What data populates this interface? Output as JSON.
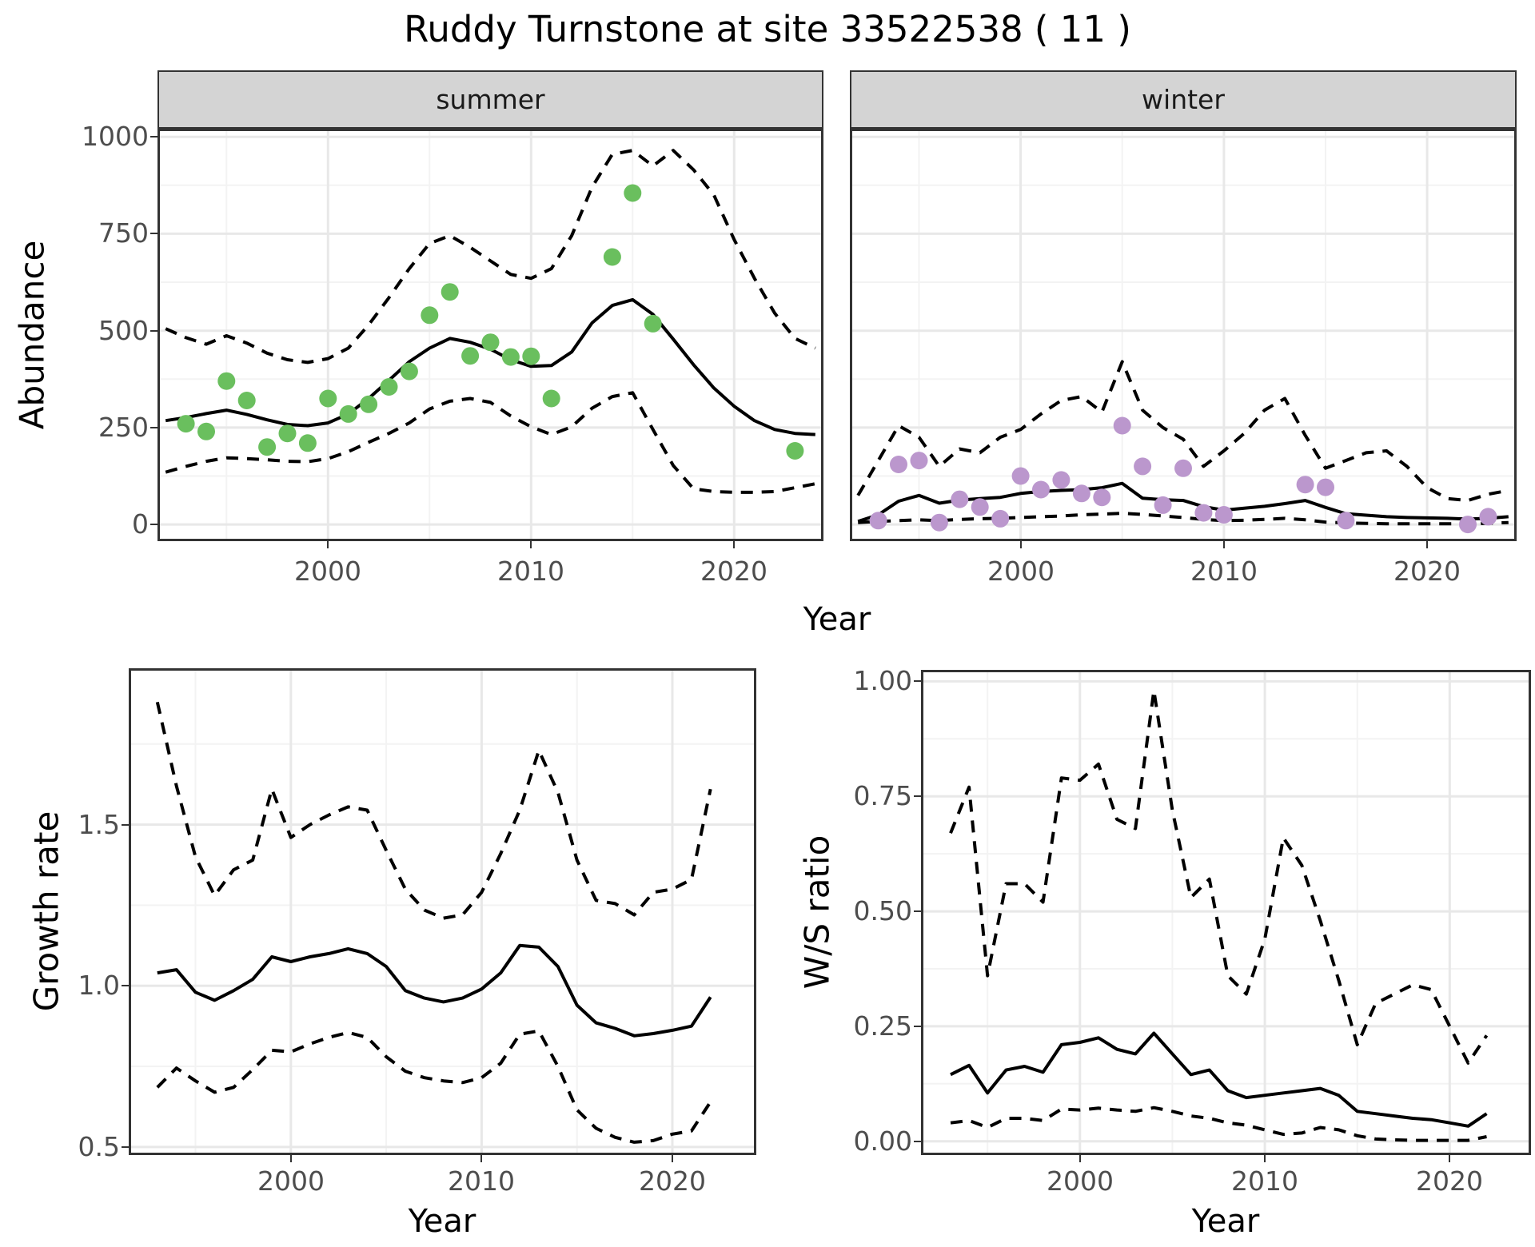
{
  "title": "Ruddy Turnstone at site 33522538 ( 11 )",
  "labels": {
    "x_axis_shared": "Year"
  },
  "colors": {
    "summer_point": "#6ABF5E",
    "winter_point": "#BB97CD",
    "line": "#000000",
    "strip_background": "#D4D4D4",
    "panel_border": "#333333",
    "grid_major": "#E8E8E8",
    "grid_minor": "#F3F3F3",
    "tick_label_text": "#4D4D4D",
    "title_text": "#000000"
  },
  "chart_data": [
    {
      "id": "abundance-summer",
      "type": "line",
      "facet_label": "summer",
      "xlabel": "Year",
      "ylabel": "Abundance",
      "x_range": [
        1991.6,
        2024.4
      ],
      "y_range": [
        -43,
        1021
      ],
      "x_ticks": [
        {
          "v": 2000,
          "label": "2000"
        },
        {
          "v": 2010,
          "label": "2010"
        },
        {
          "v": 2020,
          "label": "2020"
        }
      ],
      "x_minor": [
        1995,
        2005,
        2015
      ],
      "y_ticks": [
        {
          "v": 0,
          "label": "0"
        },
        {
          "v": 250,
          "label": "250"
        },
        {
          "v": 500,
          "label": "500"
        },
        {
          "v": 750,
          "label": "750"
        },
        {
          "v": 1000,
          "label": "1000"
        }
      ],
      "y_minor": [
        125,
        375,
        625,
        875
      ],
      "grid": true,
      "legend": "none",
      "start_year": 1992,
      "series": [
        {
          "name": "median",
          "style": "solid",
          "values": [
            268,
            276,
            286,
            295,
            284,
            270,
            258,
            255,
            262,
            285,
            325,
            372,
            420,
            455,
            480,
            470,
            452,
            425,
            408,
            410,
            445,
            520,
            565,
            580,
            542,
            478,
            412,
            352,
            305,
            268,
            245,
            235,
            232
          ]
        },
        {
          "name": "ci_upper",
          "style": "dashed",
          "values": [
            505,
            482,
            465,
            487,
            468,
            442,
            425,
            418,
            428,
            455,
            515,
            585,
            660,
            725,
            745,
            715,
            680,
            645,
            635,
            660,
            745,
            870,
            955,
            965,
            925,
            965,
            915,
            850,
            735,
            635,
            545,
            480,
            455
          ]
        },
        {
          "name": "ci_lower",
          "style": "dashed",
          "values": [
            135,
            150,
            163,
            172,
            170,
            167,
            163,
            162,
            170,
            188,
            212,
            235,
            262,
            298,
            318,
            325,
            315,
            280,
            252,
            232,
            252,
            300,
            330,
            340,
            245,
            152,
            92,
            85,
            83,
            83,
            85,
            95,
            105
          ]
        }
      ],
      "points": {
        "name": "observed-abundance-summer",
        "color": "#6ABF5E",
        "xy": [
          [
            1993,
            260
          ],
          [
            1994,
            240
          ],
          [
            1995,
            370
          ],
          [
            1996,
            320
          ],
          [
            1997,
            200
          ],
          [
            1998,
            235
          ],
          [
            1999,
            210
          ],
          [
            2000,
            325
          ],
          [
            2001,
            285
          ],
          [
            2002,
            310
          ],
          [
            2003,
            355
          ],
          [
            2004,
            395
          ],
          [
            2005,
            540
          ],
          [
            2006,
            600
          ],
          [
            2007,
            435
          ],
          [
            2008,
            470
          ],
          [
            2009,
            432
          ],
          [
            2010,
            434
          ],
          [
            2011,
            325
          ],
          [
            2014,
            690
          ],
          [
            2015,
            855
          ],
          [
            2016,
            518
          ],
          [
            2023,
            190
          ]
        ]
      }
    },
    {
      "id": "abundance-winter",
      "type": "line",
      "facet_label": "winter",
      "xlabel": "Year",
      "ylabel": "",
      "x_range": [
        1991.6,
        2024.4
      ],
      "y_range": [
        -43,
        1021
      ],
      "x_ticks": [
        {
          "v": 2000,
          "label": "2000"
        },
        {
          "v": 2010,
          "label": "2010"
        },
        {
          "v": 2020,
          "label": "2020"
        }
      ],
      "x_minor": [
        1995,
        2005,
        2015
      ],
      "y_ticks": [
        {
          "v": 0,
          "label": "0"
        },
        {
          "v": 250,
          "label": "250"
        },
        {
          "v": 500,
          "label": "500"
        },
        {
          "v": 750,
          "label": "750"
        },
        {
          "v": 1000,
          "label": "1000"
        }
      ],
      "y_minor": [
        125,
        375,
        625,
        875
      ],
      "grid": true,
      "legend": "none",
      "start_year": 1992,
      "series": [
        {
          "name": "median",
          "style": "solid",
          "values": [
            8,
            25,
            60,
            75,
            55,
            63,
            67,
            70,
            80,
            85,
            88,
            90,
            95,
            106,
            68,
            64,
            62,
            46,
            37,
            42,
            47,
            54,
            62,
            44,
            28,
            24,
            20,
            18,
            17,
            16,
            14,
            16,
            20
          ]
        },
        {
          "name": "ci_upper",
          "style": "dashed",
          "values": [
            75,
            165,
            255,
            225,
            150,
            195,
            185,
            225,
            245,
            285,
            320,
            330,
            290,
            420,
            295,
            250,
            220,
            150,
            190,
            235,
            295,
            325,
            230,
            145,
            165,
            185,
            190,
            150,
            95,
            67,
            62,
            78,
            88
          ]
        },
        {
          "name": "ci_lower",
          "style": "dashed",
          "values": [
            5,
            8,
            10,
            12,
            10,
            13,
            15,
            16,
            18,
            20,
            22,
            25,
            27,
            29,
            26,
            22,
            18,
            13,
            10,
            11,
            13,
            16,
            12,
            6,
            4,
            3,
            2,
            2,
            2,
            2,
            2,
            3,
            5
          ]
        }
      ],
      "points": {
        "name": "observed-abundance-winter",
        "color": "#BB97CD",
        "xy": [
          [
            1993,
            10
          ],
          [
            1994,
            155
          ],
          [
            1995,
            165
          ],
          [
            1996,
            5
          ],
          [
            1997,
            65
          ],
          [
            1998,
            45
          ],
          [
            1999,
            15
          ],
          [
            2000,
            125
          ],
          [
            2001,
            90
          ],
          [
            2002,
            115
          ],
          [
            2003,
            80
          ],
          [
            2004,
            70
          ],
          [
            2005,
            255
          ],
          [
            2006,
            150
          ],
          [
            2007,
            50
          ],
          [
            2008,
            145
          ],
          [
            2009,
            30
          ],
          [
            2010,
            25
          ],
          [
            2014,
            103
          ],
          [
            2015,
            96
          ],
          [
            2016,
            10
          ],
          [
            2022,
            0
          ],
          [
            2023,
            20
          ]
        ]
      }
    },
    {
      "id": "growth-rate",
      "type": "line",
      "facet_label": "",
      "xlabel": "Year",
      "ylabel": "Growth rate",
      "x_range": [
        1991.5,
        2024.4
      ],
      "y_range": [
        0.475,
        1.985
      ],
      "x_ticks": [
        {
          "v": 2000,
          "label": "2000"
        },
        {
          "v": 2010,
          "label": "2010"
        },
        {
          "v": 2020,
          "label": "2020"
        }
      ],
      "x_minor": [
        1995,
        2005,
        2015
      ],
      "y_ticks": [
        {
          "v": 0.5,
          "label": "0.5"
        },
        {
          "v": 1.0,
          "label": "1.0"
        },
        {
          "v": 1.5,
          "label": "1.5"
        }
      ],
      "y_minor": [
        0.75,
        1.25,
        1.75
      ],
      "grid": true,
      "legend": "none",
      "start_year": 1993,
      "series": [
        {
          "name": "median",
          "style": "solid",
          "values": [
            1.04,
            1.05,
            0.98,
            0.955,
            0.985,
            1.02,
            1.09,
            1.075,
            1.09,
            1.1,
            1.115,
            1.1,
            1.06,
            0.985,
            0.962,
            0.95,
            0.962,
            0.99,
            1.04,
            1.125,
            1.12,
            1.06,
            0.94,
            0.885,
            0.868,
            0.845,
            0.852,
            0.862,
            0.875,
            0.965
          ]
        },
        {
          "name": "ci_upper",
          "style": "dashed",
          "values": [
            1.88,
            1.62,
            1.4,
            1.28,
            1.36,
            1.39,
            1.61,
            1.46,
            1.5,
            1.53,
            1.555,
            1.545,
            1.42,
            1.3,
            1.235,
            1.21,
            1.22,
            1.29,
            1.41,
            1.545,
            1.73,
            1.6,
            1.39,
            1.265,
            1.255,
            1.22,
            1.29,
            1.3,
            1.33,
            1.61
          ]
        },
        {
          "name": "ci_lower",
          "style": "dashed",
          "values": [
            0.685,
            0.745,
            0.705,
            0.67,
            0.685,
            0.74,
            0.8,
            0.795,
            0.82,
            0.84,
            0.855,
            0.84,
            0.78,
            0.735,
            0.715,
            0.705,
            0.7,
            0.715,
            0.76,
            0.85,
            0.86,
            0.75,
            0.615,
            0.558,
            0.53,
            0.515,
            0.52,
            0.54,
            0.55,
            0.64
          ]
        }
      ],
      "points": null
    },
    {
      "id": "ws-ratio",
      "type": "line",
      "facet_label": "",
      "xlabel": "Year",
      "ylabel": "W/S ratio",
      "x_range": [
        1991.4,
        2024.4
      ],
      "y_range": [
        -0.03,
        1.025
      ],
      "x_ticks": [
        {
          "v": 2000,
          "label": "2000"
        },
        {
          "v": 2010,
          "label": "2010"
        },
        {
          "v": 2020,
          "label": "2020"
        }
      ],
      "x_minor": [
        1995,
        2005,
        2015
      ],
      "y_ticks": [
        {
          "v": 0,
          "label": "0.00"
        },
        {
          "v": 0.25,
          "label": "0.25"
        },
        {
          "v": 0.5,
          "label": "0.50"
        },
        {
          "v": 0.75,
          "label": "0.75"
        },
        {
          "v": 1.0,
          "label": "1.00"
        }
      ],
      "y_minor": [
        0.125,
        0.375,
        0.625,
        0.875
      ],
      "grid": true,
      "legend": "none",
      "start_year": 1993,
      "series": [
        {
          "name": "median",
          "style": "solid",
          "values": [
            0.145,
            0.165,
            0.105,
            0.155,
            0.163,
            0.15,
            0.21,
            0.215,
            0.225,
            0.2,
            0.19,
            0.235,
            0.19,
            0.145,
            0.155,
            0.11,
            0.095,
            0.1,
            0.105,
            0.11,
            0.115,
            0.1,
            0.065,
            0.06,
            0.055,
            0.05,
            0.047,
            0.04,
            0.033,
            0.06
          ]
        },
        {
          "name": "ci_upper",
          "style": "dashed",
          "values": [
            0.67,
            0.77,
            0.36,
            0.56,
            0.56,
            0.52,
            0.79,
            0.785,
            0.82,
            0.7,
            0.68,
            0.98,
            0.72,
            0.53,
            0.57,
            0.36,
            0.32,
            0.44,
            0.66,
            0.6,
            0.48,
            0.35,
            0.21,
            0.3,
            0.32,
            0.34,
            0.33,
            0.25,
            0.17,
            0.23
          ]
        },
        {
          "name": "ci_lower",
          "style": "dashed",
          "values": [
            0.04,
            0.045,
            0.03,
            0.05,
            0.05,
            0.045,
            0.07,
            0.068,
            0.072,
            0.068,
            0.065,
            0.073,
            0.065,
            0.055,
            0.05,
            0.04,
            0.035,
            0.025,
            0.015,
            0.018,
            0.03,
            0.025,
            0.012,
            0.005,
            0.003,
            0.002,
            0.002,
            0.002,
            0.002,
            0.01
          ]
        }
      ],
      "points": null
    }
  ]
}
